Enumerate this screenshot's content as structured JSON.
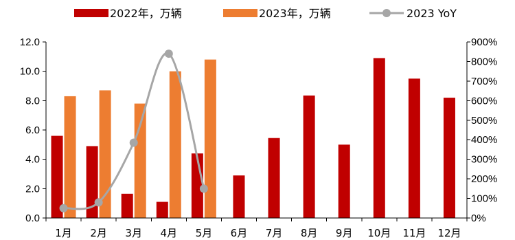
{
  "chart_data": {
    "type": "bar",
    "categories": [
      "1月",
      "2月",
      "3月",
      "4月",
      "5月",
      "6月",
      "7月",
      "8月",
      "9月",
      "10月",
      "11月",
      "12月"
    ],
    "series": [
      {
        "name": "2022年，万辆",
        "type": "bar",
        "axis": "left",
        "color": "#C00000",
        "values": [
          5.6,
          4.9,
          1.65,
          1.1,
          4.4,
          2.9,
          5.45,
          8.35,
          5.0,
          10.9,
          9.5,
          8.2
        ]
      },
      {
        "name": "2023年，万辆",
        "type": "bar",
        "axis": "left",
        "color": "#ED7D31",
        "values": [
          8.3,
          8.7,
          7.8,
          10.0,
          10.8,
          null,
          null,
          null,
          null,
          null,
          null,
          null
        ]
      },
      {
        "name": "2023 YoY",
        "type": "line",
        "axis": "right",
        "color": "#A6A6A6",
        "values": [
          50,
          80,
          385,
          840,
          150,
          null,
          null,
          null,
          null,
          null,
          null,
          null
        ]
      }
    ],
    "y_left": {
      "min": 0,
      "max": 12,
      "step": 2,
      "tick_labels": [
        "0.0",
        "2.0",
        "4.0",
        "6.0",
        "8.0",
        "10.0",
        "12.0"
      ]
    },
    "y_right": {
      "min": 0,
      "max": 900,
      "step": 100,
      "tick_labels": [
        "0%",
        "100%",
        "200%",
        "300%",
        "400%",
        "500%",
        "600%",
        "700%",
        "800%",
        "900%"
      ]
    },
    "grid": false,
    "legend_position": "top"
  }
}
